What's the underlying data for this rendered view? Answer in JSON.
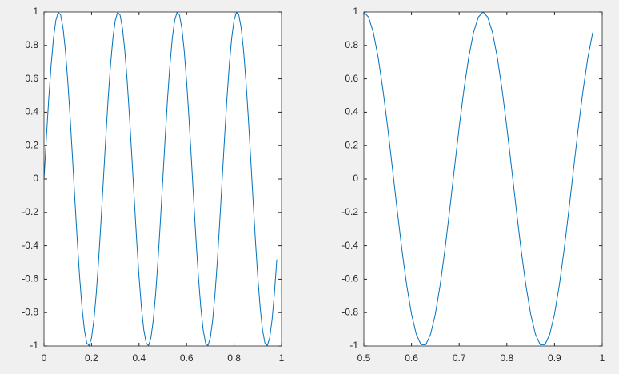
{
  "chart_data": [
    {
      "type": "line",
      "color": "#0072bd",
      "x": [
        0,
        0.01,
        0.02,
        0.03,
        0.04,
        0.05,
        0.06,
        0.07,
        0.08,
        0.09,
        0.1,
        0.11,
        0.12,
        0.13,
        0.14,
        0.15,
        0.16,
        0.17,
        0.18,
        0.19,
        0.2,
        0.21,
        0.22,
        0.23,
        0.24,
        0.25,
        0.26,
        0.27,
        0.28,
        0.29,
        0.3,
        0.31,
        0.32,
        0.33,
        0.34,
        0.35,
        0.36,
        0.37,
        0.38,
        0.39,
        0.4,
        0.41,
        0.42,
        0.43,
        0.44,
        0.45,
        0.46,
        0.47,
        0.48,
        0.49,
        0.5,
        0.51,
        0.52,
        0.53,
        0.54,
        0.55,
        0.56,
        0.57,
        0.58,
        0.59,
        0.6,
        0.61,
        0.62,
        0.63,
        0.64,
        0.65,
        0.66,
        0.67,
        0.68,
        0.69,
        0.7,
        0.71,
        0.72,
        0.73,
        0.74,
        0.75,
        0.76,
        0.77,
        0.78,
        0.79,
        0.8,
        0.81,
        0.82,
        0.83,
        0.84,
        0.85,
        0.86,
        0.87,
        0.88,
        0.89,
        0.9,
        0.91,
        0.92,
        0.93,
        0.94,
        0.95,
        0.96,
        0.97,
        0.98
      ],
      "values": [
        0,
        0.2487,
        0.4818,
        0.6845,
        0.8443,
        0.9511,
        0.998,
        0.9823,
        0.9048,
        0.7705,
        0.5878,
        0.3681,
        0.1253,
        -0.1253,
        -0.3681,
        -0.5878,
        -0.7705,
        -0.9048,
        -0.9823,
        -0.998,
        -0.9511,
        -0.8443,
        -0.6845,
        -0.4818,
        -0.2487,
        0,
        0.2487,
        0.4818,
        0.6845,
        0.8443,
        0.9511,
        0.998,
        0.9823,
        0.9048,
        0.7705,
        0.5878,
        0.3681,
        0.1253,
        -0.1253,
        -0.3681,
        -0.5878,
        -0.7705,
        -0.9048,
        -0.9823,
        -0.998,
        -0.9511,
        -0.8443,
        -0.6845,
        -0.4818,
        -0.2487,
        0,
        0.2487,
        0.4818,
        0.6845,
        0.8443,
        0.9511,
        0.998,
        0.9823,
        0.9048,
        0.7705,
        0.5878,
        0.3681,
        0.1253,
        -0.1253,
        -0.3681,
        -0.5878,
        -0.7705,
        -0.9048,
        -0.9823,
        -0.998,
        -0.9511,
        -0.8443,
        -0.6845,
        -0.4818,
        -0.2487,
        0,
        0.2487,
        0.4818,
        0.6845,
        0.8443,
        0.9511,
        0.998,
        0.9823,
        0.9048,
        0.7705,
        0.5878,
        0.3681,
        0.1253,
        -0.1253,
        -0.3681,
        -0.5878,
        -0.7705,
        -0.9048,
        -0.9823,
        -0.998,
        -0.9511,
        -0.8443,
        -0.6845,
        -0.4818
      ],
      "xlim": [
        0,
        1
      ],
      "xticks": [
        0,
        0.2,
        0.4,
        0.6,
        0.8,
        1
      ],
      "ylim": [
        -1,
        1
      ],
      "yticks": [
        -1,
        -0.8,
        -0.6,
        -0.4,
        -0.2,
        0,
        0.2,
        0.4,
        0.6,
        0.8,
        1
      ]
    },
    {
      "type": "line",
      "color": "#0072bd",
      "x": [
        0.5,
        0.51,
        0.52,
        0.53,
        0.54,
        0.55,
        0.56,
        0.57,
        0.58,
        0.59,
        0.6,
        0.61,
        0.62,
        0.63,
        0.64,
        0.65,
        0.66,
        0.67,
        0.68,
        0.69,
        0.7,
        0.71,
        0.72,
        0.73,
        0.74,
        0.75,
        0.76,
        0.77,
        0.78,
        0.79,
        0.8,
        0.81,
        0.82,
        0.83,
        0.84,
        0.85,
        0.86,
        0.87,
        0.88,
        0.89,
        0.9,
        0.91,
        0.92,
        0.93,
        0.94,
        0.95,
        0.96,
        0.97,
        0.98
      ],
      "values": [
        1,
        0.9686,
        0.8763,
        0.729,
        0.5358,
        0.309,
        0.0628,
        -0.1874,
        -0.4258,
        -0.6374,
        -0.809,
        -0.9298,
        -0.9921,
        -0.9921,
        -0.9298,
        -0.809,
        -0.6374,
        -0.4258,
        -0.1874,
        0.0628,
        0.309,
        0.5358,
        0.729,
        0.8763,
        0.9686,
        1,
        0.9686,
        0.8763,
        0.729,
        0.5358,
        0.309,
        0.0628,
        -0.1874,
        -0.4258,
        -0.6374,
        -0.809,
        -0.9298,
        -0.9921,
        -0.9921,
        -0.9298,
        -0.809,
        -0.6374,
        -0.4258,
        -0.1874,
        0.0628,
        0.309,
        0.5358,
        0.729,
        0.8763
      ],
      "xlim": [
        0.5,
        1
      ],
      "xticks": [
        0.5,
        0.6,
        0.7,
        0.8,
        0.9,
        1
      ],
      "ylim": [
        -1,
        1
      ],
      "yticks": [
        -1,
        -0.8,
        -0.6,
        -0.4,
        -0.2,
        0,
        0.2,
        0.4,
        0.6,
        0.8,
        1
      ]
    }
  ]
}
